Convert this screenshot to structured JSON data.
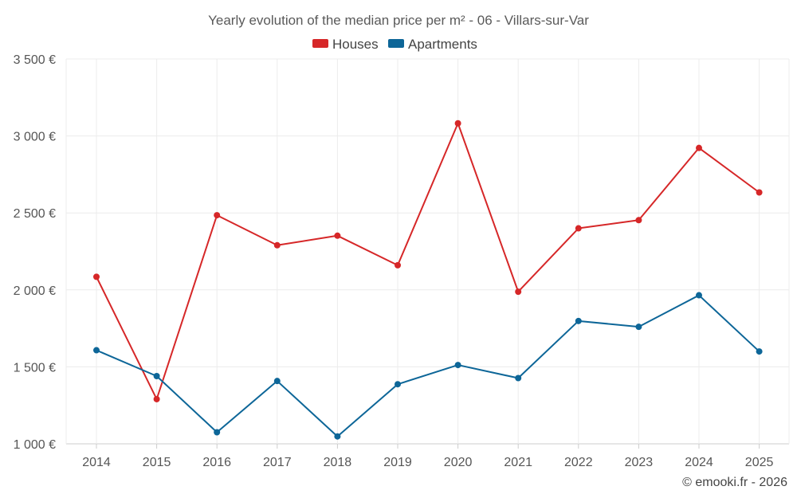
{
  "chart_data": {
    "type": "line",
    "title": "Yearly evolution of the median price per m² - 06 - Villars-sur-Var",
    "categories": [
      "2014",
      "2015",
      "2016",
      "2017",
      "2018",
      "2019",
      "2020",
      "2021",
      "2022",
      "2023",
      "2024",
      "2025"
    ],
    "series": [
      {
        "name": "Houses",
        "color": "#d62728",
        "values": [
          2085,
          1290,
          2485,
          2290,
          2352,
          2160,
          3082,
          1988,
          2400,
          2453,
          2922,
          2633
        ]
      },
      {
        "name": "Apartments",
        "color": "#0d6698",
        "values": [
          1608,
          1440,
          1075,
          1408,
          1048,
          1387,
          1512,
          1427,
          1798,
          1760,
          1965,
          1600
        ]
      }
    ],
    "ylim": [
      1000,
      3500
    ],
    "yticks": [
      1000,
      1500,
      2000,
      2500,
      3000,
      3500
    ],
    "ytick_labels": [
      "1 000 €",
      "1 500 €",
      "2 000 €",
      "2 500 €",
      "3 000 €",
      "3 500 €"
    ],
    "xlabel": "",
    "ylabel": "",
    "grid": true,
    "legend_position": "top-center"
  },
  "credit": "© emooki.fr - 2026"
}
